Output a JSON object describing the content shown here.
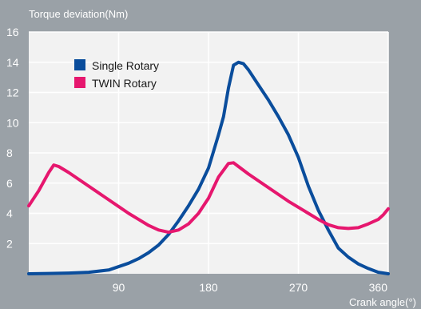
{
  "chart_data": {
    "type": "line",
    "title": "",
    "ylabel": "Torque deviation(Nm)",
    "xlabel": "Crank angle(°)",
    "xlim": [
      0,
      360
    ],
    "ylim": [
      0,
      16
    ],
    "xticks": [
      90,
      180,
      270,
      360
    ],
    "yticks": [
      2,
      4,
      6,
      8,
      10,
      12,
      14,
      16
    ],
    "grid": true,
    "legend": "top-left",
    "plot_background": "#f2f2f2",
    "outer_background": "#9aa1a7",
    "series": [
      {
        "name": "Single Rotary",
        "color": "#0a4d9c",
        "x": [
          0,
          20,
          40,
          60,
          80,
          100,
          110,
          120,
          130,
          140,
          150,
          160,
          170,
          180,
          190,
          195,
          200,
          205,
          210,
          215,
          220,
          230,
          240,
          250,
          260,
          270,
          280,
          290,
          300,
          310,
          320,
          330,
          340,
          350,
          360
        ],
        "y": [
          0.0,
          0.02,
          0.05,
          0.1,
          0.25,
          0.7,
          1.0,
          1.4,
          1.9,
          2.6,
          3.5,
          4.5,
          5.6,
          7.0,
          9.2,
          10.4,
          12.3,
          13.8,
          14.0,
          13.9,
          13.5,
          12.5,
          11.5,
          10.4,
          9.2,
          7.7,
          5.8,
          4.2,
          2.9,
          1.7,
          1.1,
          0.65,
          0.35,
          0.1,
          0.0
        ]
      },
      {
        "name": "TWIN Rotary",
        "color": "#e6176e",
        "x": [
          0,
          10,
          20,
          25,
          30,
          40,
          60,
          80,
          100,
          110,
          120,
          130,
          140,
          150,
          160,
          170,
          180,
          190,
          200,
          205,
          210,
          220,
          240,
          260,
          280,
          290,
          300,
          310,
          320,
          330,
          340,
          350,
          355,
          360
        ],
        "y": [
          4.5,
          5.5,
          6.7,
          7.2,
          7.1,
          6.7,
          5.8,
          4.9,
          4.0,
          3.6,
          3.2,
          2.9,
          2.75,
          2.9,
          3.3,
          4.0,
          5.0,
          6.4,
          7.3,
          7.35,
          7.1,
          6.6,
          5.7,
          4.8,
          4.0,
          3.6,
          3.25,
          3.05,
          3.0,
          3.05,
          3.3,
          3.6,
          3.9,
          4.3
        ]
      }
    ]
  }
}
